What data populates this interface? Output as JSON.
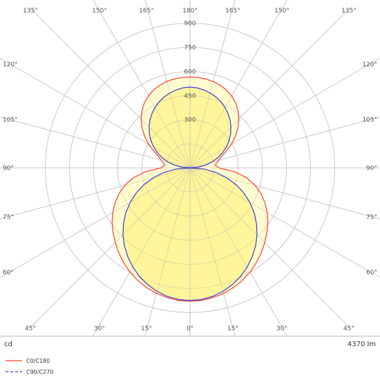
{
  "chart_data": {
    "type": "polar",
    "unit_label": "cd",
    "flux_label": "4370 lm",
    "radial_ticks": [
      150,
      300,
      450,
      600,
      750,
      900
    ],
    "radial_tick_labels": [
      "300",
      "450",
      "600",
      "750",
      "900"
    ],
    "radial_max": 950,
    "angle_spokes": [
      0,
      15,
      30,
      45,
      60,
      75,
      90,
      105,
      120,
      135,
      150,
      165,
      180
    ],
    "angle_labels": {
      "bottom": [
        "45°",
        "30°",
        "15°",
        "0°",
        "15°",
        "30°",
        "45°"
      ],
      "top": [
        "135°",
        "150°",
        "165°",
        "180°",
        "165°",
        "150°",
        "135°"
      ],
      "sides": [
        {
          "angle": 120,
          "text": "120°"
        },
        {
          "angle": 105,
          "text": "105°"
        },
        {
          "angle": 90,
          "text": "90°"
        },
        {
          "angle": 75,
          "text": "75°"
        },
        {
          "angle": 60,
          "text": "60°"
        }
      ]
    },
    "series": [
      {
        "name": "C0/C180",
        "color": "#ff3b30",
        "style": "solid",
        "theta": [
          0,
          5,
          10,
          15,
          20,
          25,
          30,
          35,
          40,
          45,
          50,
          55,
          60,
          65,
          70,
          75,
          80,
          85,
          90,
          95,
          100,
          105,
          110,
          115,
          120,
          125,
          130,
          135,
          140,
          145,
          150,
          155,
          160,
          165,
          170,
          175,
          180
        ],
        "values": [
          830,
          828,
          820,
          808,
          792,
          772,
          748,
          720,
          690,
          658,
          625,
          592,
          555,
          515,
          470,
          420,
          360,
          280,
          180,
          160,
          165,
          185,
          210,
          250,
          300,
          345,
          390,
          430,
          465,
          495,
          518,
          535,
          548,
          557,
          562,
          565,
          566
        ]
      },
      {
        "name": "C90/C270",
        "color": "#3b3bd6",
        "style": "dashed",
        "theta": [
          0,
          5,
          10,
          15,
          20,
          25,
          30,
          35,
          40,
          45,
          50,
          55,
          60,
          65,
          70,
          75,
          80,
          85,
          90,
          95,
          100,
          105,
          110,
          115,
          120,
          125,
          130,
          135,
          140,
          145,
          150,
          155,
          160,
          165,
          170,
          175,
          180
        ],
        "values": [
          825,
          822,
          812,
          795,
          772,
          745,
          712,
          675,
          635,
          590,
          540,
          488,
          430,
          370,
          305,
          235,
          165,
          90,
          0,
          50,
          98,
          143,
          185,
          225,
          262,
          297,
          330,
          360,
          388,
          413,
          435,
          454,
          470,
          483,
          493,
          500,
          503
        ]
      }
    ]
  }
}
